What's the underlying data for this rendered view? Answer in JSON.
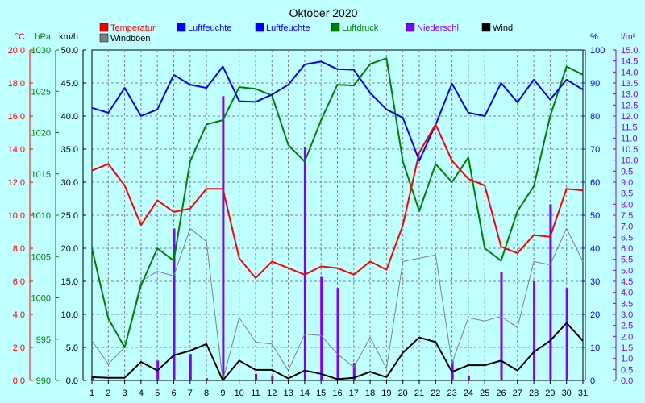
{
  "chart_data": {
    "type": "line",
    "title": "Oktober 2020",
    "x": [
      1,
      2,
      3,
      4,
      5,
      6,
      7,
      8,
      9,
      10,
      11,
      12,
      13,
      14,
      15,
      16,
      17,
      18,
      19,
      20,
      21,
      22,
      23,
      24,
      25,
      26,
      27,
      28,
      29,
      30,
      31
    ],
    "x_ticks": [
      "1",
      "2",
      "3",
      "4",
      "5",
      "6",
      "7",
      "8",
      "9",
      "10",
      "11",
      "12",
      "13",
      "14",
      "15",
      "16",
      "17",
      "18",
      "19",
      "20",
      "21",
      "22",
      "23",
      "24",
      "25",
      "26",
      "27",
      "28",
      "29",
      "30",
      "31"
    ],
    "axes": [
      {
        "id": "temp",
        "unit": "°C",
        "side": "left",
        "color": "#ff0000",
        "min": 0,
        "max": 20,
        "ticks": [
          "0.0",
          "2.0",
          "4.0",
          "6.0",
          "8.0",
          "10.0",
          "12.0",
          "14.0",
          "16.0",
          "18.0",
          "20.0"
        ]
      },
      {
        "id": "press",
        "unit": "hPa",
        "side": "left",
        "color": "#008000",
        "min": 990,
        "max": 1030,
        "ticks": [
          "990",
          "995",
          "1000",
          "1005",
          "1010",
          "1015",
          "1020",
          "1025",
          "1030"
        ]
      },
      {
        "id": "wind",
        "unit": "km/h",
        "side": "left",
        "color": "#000000",
        "min": 0,
        "max": 50,
        "ticks": [
          "0.0",
          "5.0",
          "10.0",
          "15.0",
          "20.0",
          "25.0",
          "30.0",
          "35.0",
          "40.0",
          "45.0",
          "50.0"
        ]
      },
      {
        "id": "hum",
        "unit": "%",
        "side": "right",
        "color": "#0000ff",
        "min": 0,
        "max": 100,
        "ticks": [
          "0",
          "10",
          "20",
          "30",
          "40",
          "50",
          "60",
          "70",
          "80",
          "90",
          "100"
        ]
      },
      {
        "id": "rain",
        "unit": "l/m²",
        "side": "right",
        "color": "#8000ff",
        "min": 0,
        "max": 15,
        "ticks": [
          "0.0",
          "0.5",
          "1.0",
          "1.5",
          "2.0",
          "2.5",
          "3.0",
          "3.5",
          "4.0",
          "4.5",
          "5.0",
          "5.5",
          "6.0",
          "6.5",
          "7.0",
          "7.5",
          "8.0",
          "8.5",
          "9.0",
          "9.5",
          "10.0",
          "10.5",
          "11.0",
          "11.5",
          "12.0",
          "12.5",
          "13.0",
          "13.5",
          "14.0",
          "14.5",
          "15.0"
        ]
      }
    ],
    "legend": [
      {
        "label": "Temperatur",
        "color": "#ff0000"
      },
      {
        "label": "Luftfeuchte",
        "color": "#0000ff"
      },
      {
        "label": "Luftfeuchte",
        "color": "#0000ff"
      },
      {
        "label": "Luftdruck",
        "color": "#008000"
      },
      {
        "label": "Niederschl.",
        "color": "#8000ff"
      },
      {
        "label": "Wind",
        "color": "#000000"
      },
      {
        "label": "Windböen",
        "color": "#808080"
      }
    ],
    "series": [
      {
        "name": "Temperatur",
        "axis": "temp",
        "kind": "line",
        "color": "#ff0000",
        "values": [
          12.7,
          13.1,
          11.8,
          9.4,
          10.9,
          10.2,
          10.4,
          11.6,
          11.6,
          7.4,
          6.2,
          7.2,
          6.8,
          6.4,
          6.9,
          6.8,
          6.4,
          7.2,
          6.7,
          9.4,
          13.8,
          15.5,
          13.3,
          12.2,
          11.8,
          8.1,
          7.7,
          8.8,
          8.7,
          11.6,
          11.5
        ]
      },
      {
        "name": "Luftfeuchte",
        "axis": "hum",
        "kind": "line",
        "color": "#0000ff",
        "values": [
          82.5,
          81,
          88.5,
          80,
          82,
          92.5,
          89.5,
          88.5,
          95,
          84.5,
          84.3,
          86.5,
          89.5,
          95.6,
          96.5,
          94.2,
          94,
          87,
          82,
          79.5,
          66.5,
          77.4,
          89.8,
          81,
          80,
          90,
          84.2,
          91,
          85,
          91,
          88
        ]
      },
      {
        "name": "Luftdruck",
        "axis": "press",
        "kind": "line",
        "color": "#008000",
        "values": [
          1006,
          997.5,
          994,
          1001.5,
          1006,
          1004.5,
          1016.5,
          1021,
          1021.5,
          1025.5,
          1025.3,
          1024.5,
          1018.5,
          1016.5,
          1021.5,
          1025.8,
          1025.7,
          1028.3,
          1029,
          1016.5,
          1010.5,
          1016.2,
          1014,
          1017,
          1006,
          1004.5,
          1010.5,
          1013.5,
          1022,
          1028,
          1027
        ]
      },
      {
        "name": "Windböen",
        "axis": "wind",
        "kind": "line",
        "color": "#808080",
        "values": [
          6,
          2.5,
          5,
          15,
          16.5,
          15.8,
          23,
          21,
          0,
          9.5,
          5.8,
          5.5,
          1.5,
          7,
          6.8,
          4,
          2,
          6.5,
          1.8,
          18,
          18.5,
          19,
          2.6,
          9.5,
          9,
          9.7,
          8,
          18,
          17.5,
          23,
          18
        ]
      },
      {
        "name": "Wind",
        "axis": "wind",
        "kind": "line",
        "color": "#000000",
        "values": [
          0.5,
          0.4,
          0.4,
          2.8,
          1.5,
          3.8,
          4.5,
          5.5,
          0,
          3,
          1.6,
          1.6,
          0.3,
          1.5,
          1,
          0.2,
          0.4,
          1.3,
          0.5,
          4.2,
          6.5,
          5.8,
          1.3,
          2.3,
          2.3,
          3,
          1.5,
          4.3,
          6,
          8.7,
          6
        ]
      },
      {
        "name": "Niederschl.",
        "axis": "rain",
        "kind": "bar",
        "color": "#8000ff",
        "values": [
          0.2,
          0,
          0,
          0,
          0.9,
          6.9,
          1.2,
          0.1,
          12.9,
          0,
          0.3,
          0.2,
          0,
          10.6,
          4.7,
          4.2,
          0.8,
          0,
          0,
          0,
          0,
          0,
          0.9,
          0.2,
          0,
          4.9,
          0,
          4.5,
          8,
          4.2,
          0
        ]
      }
    ],
    "grid": true
  },
  "colors": {
    "background": "#ffffff",
    "plot_bg": "#c0ffff",
    "grid": "#808080"
  }
}
